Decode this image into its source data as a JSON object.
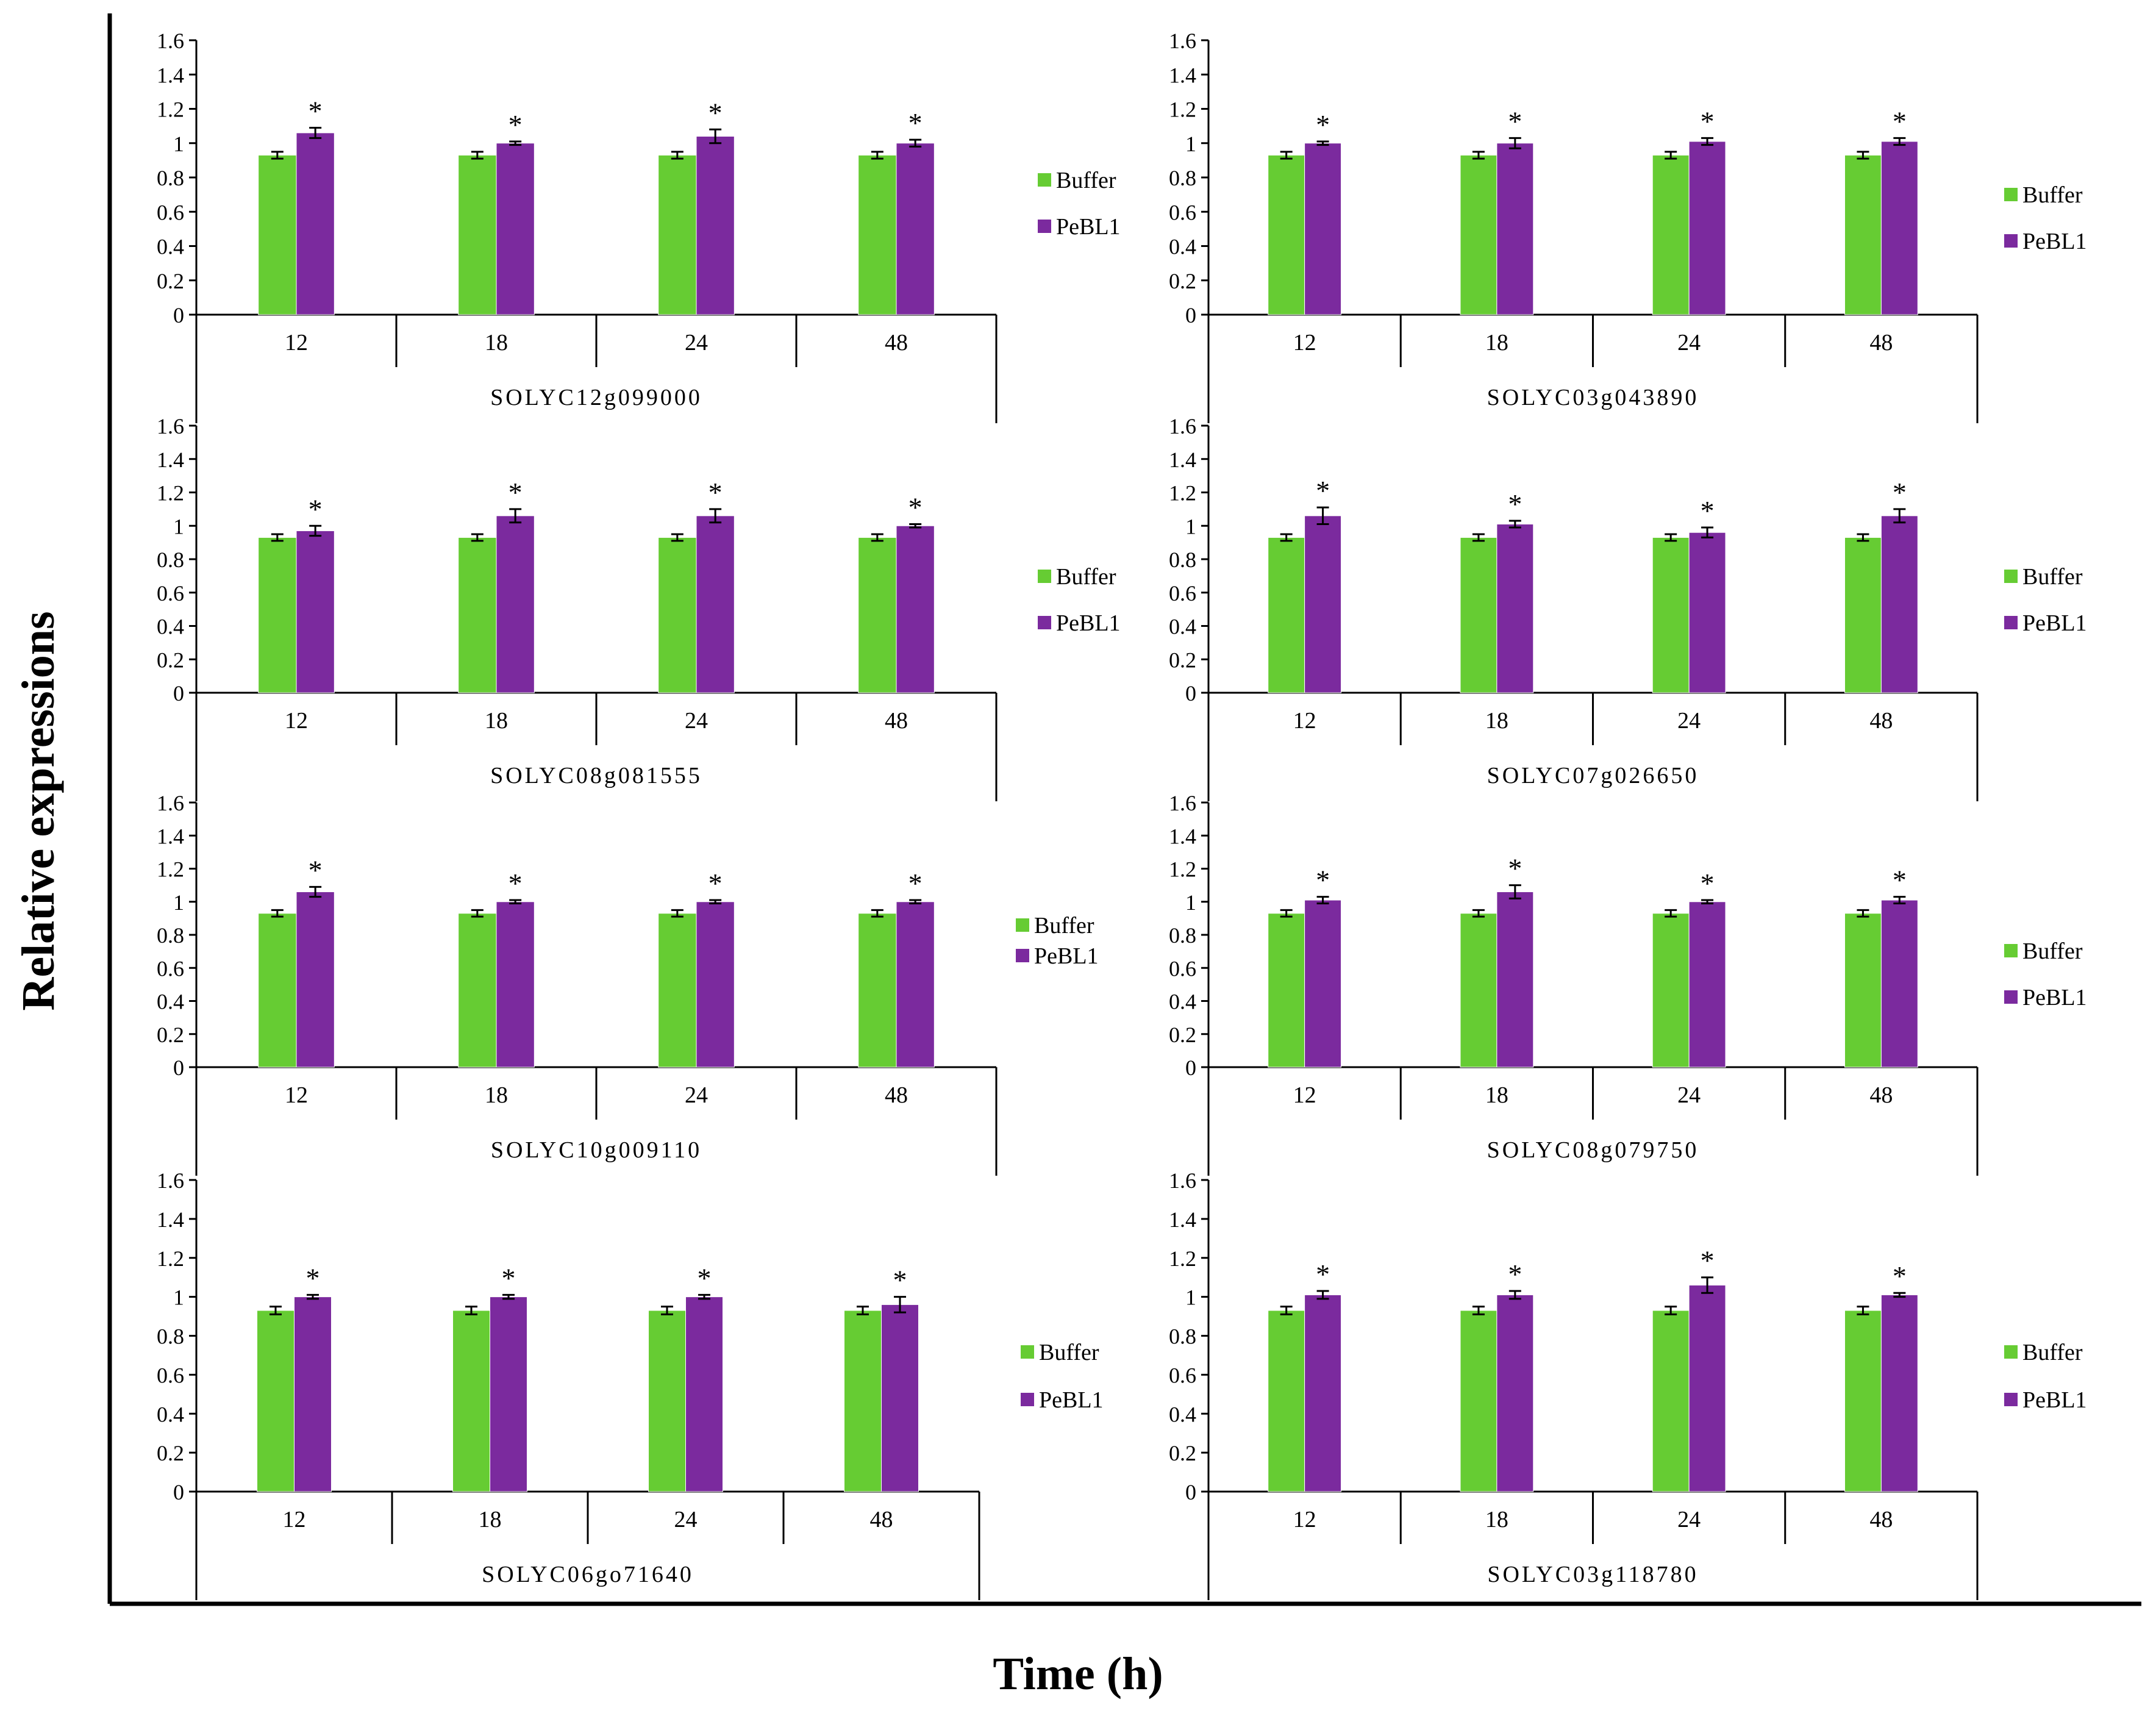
{
  "figure": {
    "ylabel": "Relative expressions",
    "xlabel": "Time (h)"
  },
  "colors": {
    "buffer": "#66CC33",
    "pebl1": "#7B2A9E",
    "axis": "#000000",
    "errorbar": "#000000"
  },
  "chart_data": [
    {
      "type": "bar",
      "title": "SOLYC12g099000",
      "categories": [
        "12",
        "18",
        "24",
        "48"
      ],
      "ylim": [
        0,
        1.6
      ],
      "yticks": [
        "0",
        "0.2",
        "0.4",
        "0.6",
        "0.8",
        "1",
        "1.2",
        "1.4",
        "1.6"
      ],
      "legend_position": "right",
      "series": [
        {
          "name": "Buffer",
          "color": "#66CC33",
          "values": [
            0.93,
            0.93,
            0.93,
            0.93
          ],
          "errors": [
            0.02,
            0.02,
            0.02,
            0.02
          ]
        },
        {
          "name": "PeBL1",
          "color": "#7B2A9E",
          "values": [
            1.06,
            1.0,
            1.04,
            1.0
          ],
          "errors": [
            0.03,
            0.01,
            0.04,
            0.02
          ]
        }
      ],
      "annotations": [
        "*",
        "*",
        "*",
        "*"
      ]
    },
    {
      "type": "bar",
      "title": "SOLYC03g043890",
      "categories": [
        "12",
        "18",
        "24",
        "48"
      ],
      "ylim": [
        0,
        1.6
      ],
      "yticks": [
        "0",
        "0.2",
        "0.4",
        "0.6",
        "0.8",
        "1",
        "1.2",
        "1.4",
        "1.6"
      ],
      "legend_position": "right",
      "series": [
        {
          "name": "Buffer",
          "color": "#66CC33",
          "values": [
            0.93,
            0.93,
            0.93,
            0.93
          ],
          "errors": [
            0.02,
            0.02,
            0.02,
            0.02
          ]
        },
        {
          "name": "PeBL1",
          "color": "#7B2A9E",
          "values": [
            1.0,
            1.0,
            1.01,
            1.01
          ],
          "errors": [
            0.01,
            0.03,
            0.02,
            0.02
          ]
        }
      ],
      "annotations": [
        "*",
        "*",
        "*",
        "*"
      ]
    },
    {
      "type": "bar",
      "title": "SOLYC08g081555",
      "categories": [
        "12",
        "18",
        "24",
        "48"
      ],
      "ylim": [
        0,
        1.6
      ],
      "yticks": [
        "0",
        "0.2",
        "0.4",
        "0.6",
        "0.8",
        "1",
        "1.2",
        "1.4",
        "1.6"
      ],
      "legend_position": "right",
      "series": [
        {
          "name": "Buffer",
          "color": "#66CC33",
          "values": [
            0.93,
            0.93,
            0.93,
            0.93
          ],
          "errors": [
            0.02,
            0.02,
            0.02,
            0.02
          ]
        },
        {
          "name": "PeBL1",
          "color": "#7B2A9E",
          "values": [
            0.97,
            1.06,
            1.06,
            1.0
          ],
          "errors": [
            0.03,
            0.04,
            0.04,
            0.01
          ]
        }
      ],
      "annotations": [
        "*",
        "*",
        "*",
        "*"
      ]
    },
    {
      "type": "bar",
      "title": "SOLYC07g026650",
      "categories": [
        "12",
        "18",
        "24",
        "48"
      ],
      "ylim": [
        0,
        1.6
      ],
      "yticks": [
        "0",
        "0.2",
        "0.4",
        "0.6",
        "0.8",
        "1",
        "1.2",
        "1.4",
        "1.6"
      ],
      "legend_position": "right",
      "series": [
        {
          "name": "Buffer",
          "color": "#66CC33",
          "values": [
            0.93,
            0.93,
            0.93,
            0.93
          ],
          "errors": [
            0.02,
            0.02,
            0.02,
            0.02
          ]
        },
        {
          "name": "PeBL1",
          "color": "#7B2A9E",
          "values": [
            1.06,
            1.01,
            0.96,
            1.06
          ],
          "errors": [
            0.05,
            0.02,
            0.03,
            0.04
          ]
        }
      ],
      "annotations": [
        "*",
        "*",
        "*",
        "*"
      ]
    },
    {
      "type": "bar",
      "title": "SOLYC10g009110",
      "categories": [
        "12",
        "18",
        "24",
        "48"
      ],
      "ylim": [
        0,
        1.6
      ],
      "yticks": [
        "0",
        "0.2",
        "0.4",
        "0.6",
        "0.8",
        "1",
        "1.2",
        "1.4",
        "1.6"
      ],
      "legend_position": "right",
      "series": [
        {
          "name": "Buffer",
          "color": "#66CC33",
          "values": [
            0.93,
            0.93,
            0.93,
            0.93
          ],
          "errors": [
            0.02,
            0.02,
            0.02,
            0.02
          ]
        },
        {
          "name": "PeBL1",
          "color": "#7B2A9E",
          "values": [
            1.06,
            1.0,
            1.0,
            1.0
          ],
          "errors": [
            0.03,
            0.01,
            0.01,
            0.01
          ]
        }
      ],
      "annotations": [
        "*",
        "*",
        "*",
        "*"
      ]
    },
    {
      "type": "bar",
      "title": "SOLYC08g079750",
      "categories": [
        "12",
        "18",
        "24",
        "48"
      ],
      "ylim": [
        0,
        1.6
      ],
      "yticks": [
        "0",
        "0.2",
        "0.4",
        "0.6",
        "0.8",
        "1",
        "1.2",
        "1.4",
        "1.6"
      ],
      "legend_position": "right",
      "series": [
        {
          "name": "Buffer",
          "color": "#66CC33",
          "values": [
            0.93,
            0.93,
            0.93,
            0.93
          ],
          "errors": [
            0.02,
            0.02,
            0.02,
            0.02
          ]
        },
        {
          "name": "PeBL1",
          "color": "#7B2A9E",
          "values": [
            1.01,
            1.06,
            1.0,
            1.01
          ],
          "errors": [
            0.02,
            0.04,
            0.01,
            0.02
          ]
        }
      ],
      "annotations": [
        "*",
        "*",
        "*",
        "*"
      ]
    },
    {
      "type": "bar",
      "title": "SOLYC06go71640",
      "categories": [
        "12",
        "18",
        "24",
        "48"
      ],
      "ylim": [
        0,
        1.6
      ],
      "yticks": [
        "0",
        "0.2",
        "0.4",
        "0.6",
        "0.8",
        "1",
        "1.2",
        "1.4",
        "1.6"
      ],
      "legend_position": "right",
      "series": [
        {
          "name": "Buffer",
          "color": "#66CC33",
          "values": [
            0.93,
            0.93,
            0.93,
            0.93
          ],
          "errors": [
            0.02,
            0.02,
            0.02,
            0.02
          ]
        },
        {
          "name": "PeBL1",
          "color": "#7B2A9E",
          "values": [
            1.0,
            1.0,
            1.0,
            0.96
          ],
          "errors": [
            0.01,
            0.01,
            0.01,
            0.04
          ]
        }
      ],
      "annotations": [
        "*",
        "*",
        "*",
        "*"
      ]
    },
    {
      "type": "bar",
      "title": "SOLYC03g118780",
      "categories": [
        "12",
        "18",
        "24",
        "48"
      ],
      "ylim": [
        0,
        1.6
      ],
      "yticks": [
        "0",
        "0.2",
        "0.4",
        "0.6",
        "0.8",
        "1",
        "1.2",
        "1.4",
        "1.6"
      ],
      "legend_position": "right",
      "series": [
        {
          "name": "Buffer",
          "color": "#66CC33",
          "values": [
            0.93,
            0.93,
            0.93,
            0.93
          ],
          "errors": [
            0.02,
            0.02,
            0.02,
            0.02
          ]
        },
        {
          "name": "PeBL1",
          "color": "#7B2A9E",
          "values": [
            1.01,
            1.01,
            1.06,
            1.01
          ],
          "errors": [
            0.02,
            0.02,
            0.04,
            0.01
          ]
        }
      ],
      "annotations": [
        "*",
        "*",
        "*",
        "*"
      ]
    }
  ]
}
